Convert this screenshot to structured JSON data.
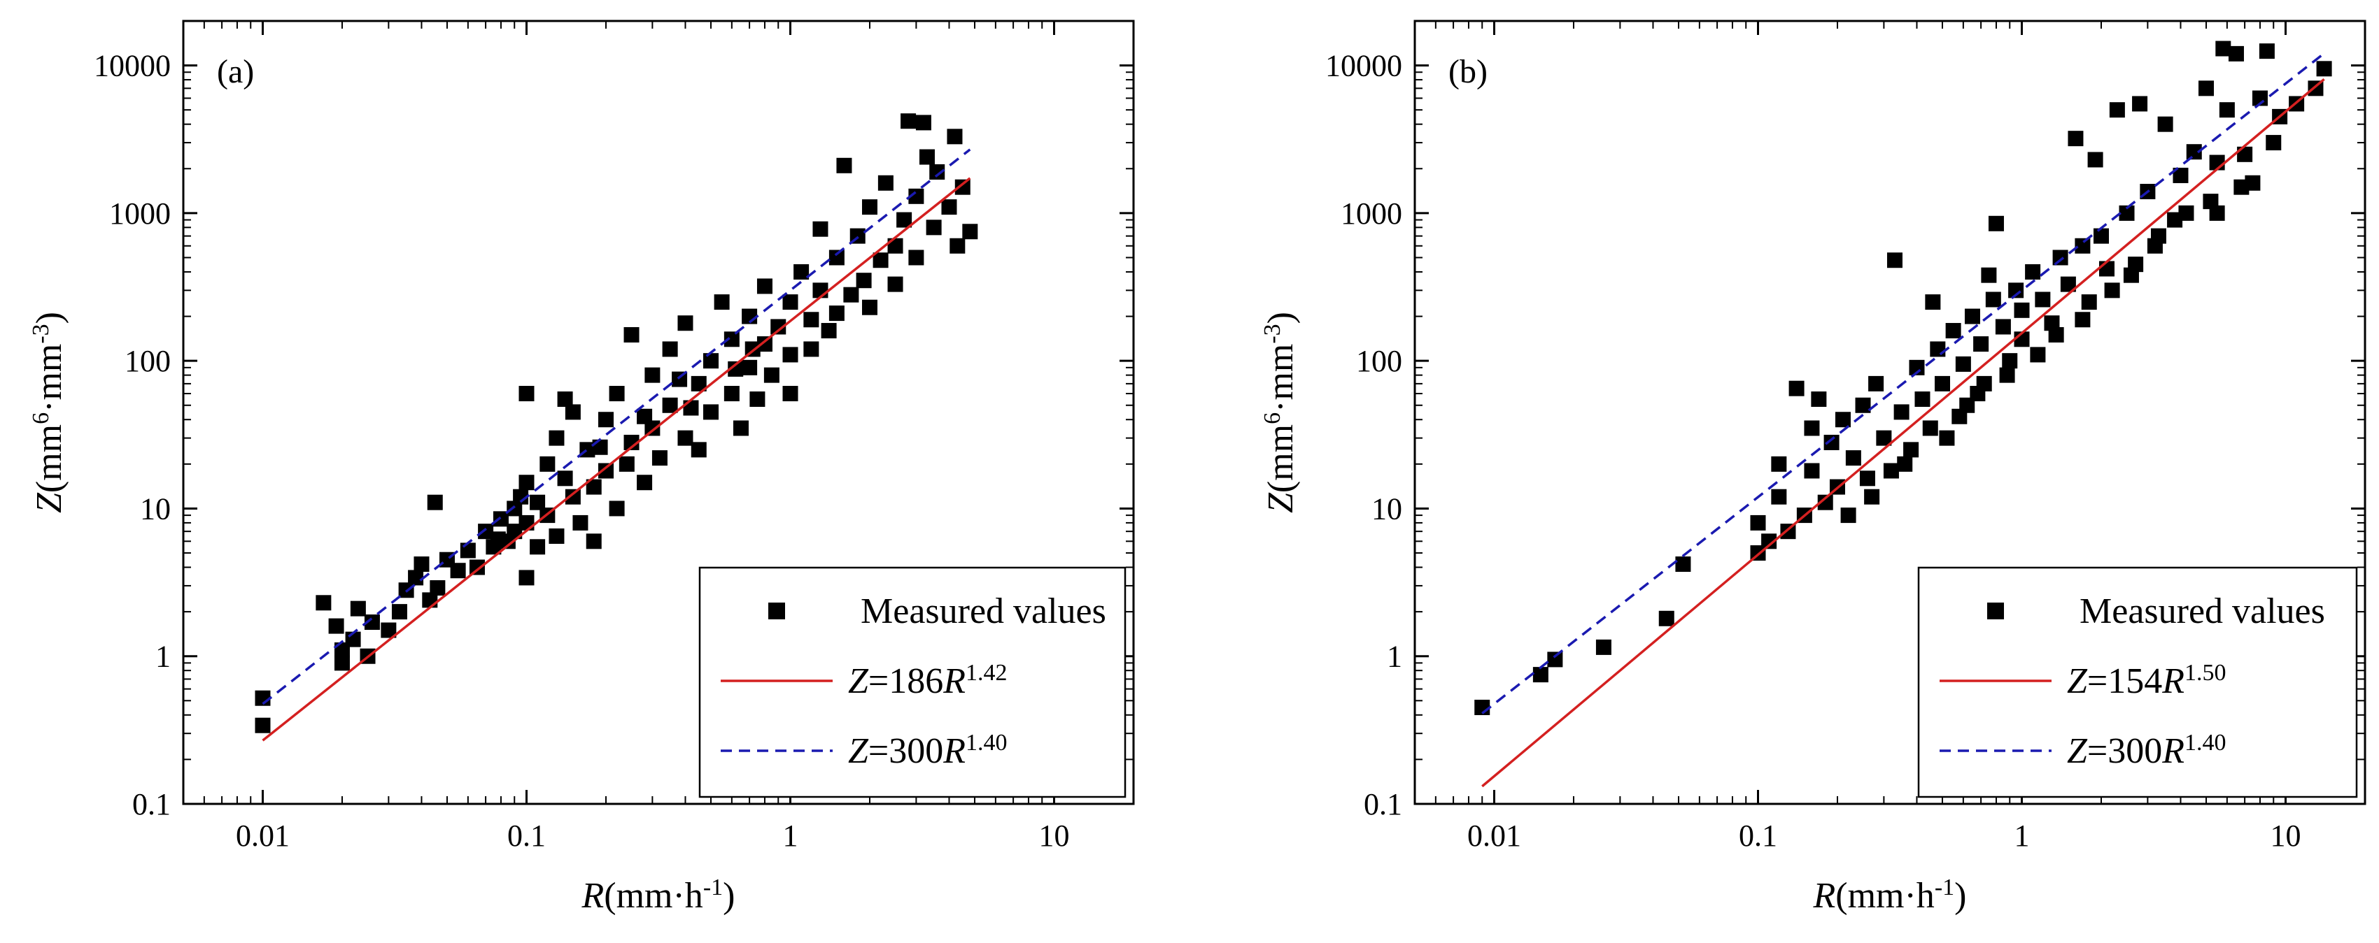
{
  "chart_data": [
    {
      "type": "scatter",
      "panel_label": "(a)",
      "xscale": "log",
      "yscale": "log",
      "xlim": [
        0.005,
        20
      ],
      "ylim": [
        0.1,
        20000
      ],
      "xticks": [
        0.01,
        0.1,
        1,
        10
      ],
      "xtick_labels": [
        "0.01",
        "0.1",
        "1",
        "10"
      ],
      "yticks": [
        0.1,
        1,
        10,
        100,
        1000,
        10000
      ],
      "ytick_labels": [
        "0.1",
        "1",
        "10",
        "100",
        "1000",
        "10000"
      ],
      "xlabel": {
        "var": "R",
        "rest": "(mm·h",
        "sup": "-1",
        "close": ")"
      },
      "ylabel": {
        "var": "Z",
        "rest": "(mm",
        "sup": "6",
        "mid": "·mm",
        "sup2": "-3",
        "close": ")"
      },
      "legend_position": "bottom-right",
      "series": [
        {
          "name": "Measured values",
          "kind": "scatter",
          "marker": "square",
          "color": "#000000",
          "points": [
            [
              0.01,
              0.34
            ],
            [
              0.01,
              0.52
            ],
            [
              0.017,
              2.3
            ],
            [
              0.019,
              1.6
            ],
            [
              0.02,
              1.1
            ],
            [
              0.02,
              0.9
            ],
            [
              0.022,
              1.3
            ],
            [
              0.023,
              2.1
            ],
            [
              0.025,
              1.0
            ],
            [
              0.026,
              1.7
            ],
            [
              0.03,
              1.5
            ],
            [
              0.033,
              2.0
            ],
            [
              0.035,
              2.8
            ],
            [
              0.038,
              3.4
            ],
            [
              0.04,
              4.2
            ],
            [
              0.043,
              2.4
            ],
            [
              0.045,
              11
            ],
            [
              0.046,
              2.9
            ],
            [
              0.05,
              4.5
            ],
            [
              0.055,
              3.8
            ],
            [
              0.06,
              5.2
            ],
            [
              0.065,
              4.0
            ],
            [
              0.07,
              7.0
            ],
            [
              0.075,
              5.5
            ],
            [
              0.08,
              8.5
            ],
            [
              0.085,
              6.0
            ],
            [
              0.09,
              10
            ],
            [
              0.095,
              12
            ],
            [
              0.1,
              3.4
            ],
            [
              0.1,
              8.0
            ],
            [
              0.1,
              15
            ],
            [
              0.1,
              60
            ],
            [
              0.11,
              5.5
            ],
            [
              0.12,
              20
            ],
            [
              0.12,
              9.0
            ],
            [
              0.13,
              6.5
            ],
            [
              0.13,
              30
            ],
            [
              0.14,
              55
            ],
            [
              0.15,
              12
            ],
            [
              0.15,
              45
            ],
            [
              0.16,
              8.0
            ],
            [
              0.17,
              25
            ],
            [
              0.18,
              14
            ],
            [
              0.18,
              6.0
            ],
            [
              0.2,
              40
            ],
            [
              0.2,
              18
            ],
            [
              0.22,
              10
            ],
            [
              0.22,
              60
            ],
            [
              0.25,
              28
            ],
            [
              0.25,
              150
            ],
            [
              0.28,
              15
            ],
            [
              0.3,
              80
            ],
            [
              0.3,
              35
            ],
            [
              0.32,
              22
            ],
            [
              0.35,
              120
            ],
            [
              0.35,
              50
            ],
            [
              0.4,
              30
            ],
            [
              0.4,
              180
            ],
            [
              0.45,
              70
            ],
            [
              0.45,
              25
            ],
            [
              0.5,
              100
            ],
            [
              0.5,
              45
            ],
            [
              0.55,
              250
            ],
            [
              0.6,
              60
            ],
            [
              0.6,
              140
            ],
            [
              0.65,
              35
            ],
            [
              0.7,
              200
            ],
            [
              0.7,
              90
            ],
            [
              0.75,
              55
            ],
            [
              0.8,
              320
            ],
            [
              0.8,
              130
            ],
            [
              0.85,
              80
            ],
            [
              0.9,
              170
            ],
            [
              1.0,
              250
            ],
            [
              1.0,
              110
            ],
            [
              1.0,
              60
            ],
            [
              1.1,
              400
            ],
            [
              1.2,
              190
            ],
            [
              1.2,
              120
            ],
            [
              1.3,
              300
            ],
            [
              1.4,
              160
            ],
            [
              1.5,
              500
            ],
            [
              1.5,
              210
            ],
            [
              1.6,
              2100
            ],
            [
              1.7,
              280
            ],
            [
              1.8,
              700
            ],
            [
              1.9,
              350
            ],
            [
              2.0,
              1100
            ],
            [
              2.0,
              230
            ],
            [
              2.2,
              480
            ],
            [
              2.3,
              1600
            ],
            [
              2.5,
              600
            ],
            [
              2.5,
              330
            ],
            [
              2.7,
              900
            ],
            [
              2.8,
              4200
            ],
            [
              3.0,
              1300
            ],
            [
              3.0,
              500
            ],
            [
              3.2,
              4100
            ],
            [
              3.3,
              2400
            ],
            [
              3.5,
              800
            ],
            [
              3.6,
              1900
            ],
            [
              4.0,
              1100
            ],
            [
              4.2,
              3300
            ],
            [
              4.3,
              600
            ],
            [
              4.5,
              1500
            ],
            [
              4.8,
              750
            ],
            [
              1.3,
              780
            ],
            [
              0.38,
              75
            ],
            [
              0.42,
              48
            ],
            [
              0.62,
              88
            ],
            [
              0.72,
              120
            ],
            [
              0.28,
              42
            ],
            [
              0.24,
              20
            ],
            [
              0.19,
              26
            ],
            [
              0.14,
              16
            ],
            [
              0.11,
              11
            ],
            [
              0.09,
              7.0
            ],
            [
              0.078,
              6.2
            ]
          ]
        },
        {
          "name": "Z=186R^1.42",
          "kind": "power-line",
          "a": 186,
          "b": 1.42,
          "x_range": [
            0.01,
            4.8
          ],
          "color": "#d42020",
          "style": "solid",
          "label": {
            "var": "Z",
            "eq": "=186",
            "var2": "R",
            "exp": "1.42"
          }
        },
        {
          "name": "Z=300R^1.40",
          "kind": "power-line",
          "a": 300,
          "b": 1.4,
          "x_range": [
            0.01,
            4.8
          ],
          "color": "#1a1ab0",
          "style": "dashed",
          "label": {
            "var": "Z",
            "eq": "=300",
            "var2": "R",
            "exp": "1.40"
          }
        }
      ]
    },
    {
      "type": "scatter",
      "panel_label": "(b)",
      "xscale": "log",
      "yscale": "log",
      "xlim": [
        0.005,
        20
      ],
      "ylim": [
        0.1,
        20000
      ],
      "xticks": [
        0.01,
        0.1,
        1,
        10
      ],
      "xtick_labels": [
        "0.01",
        "0.1",
        "1",
        "10"
      ],
      "yticks": [
        0.1,
        1,
        10,
        100,
        1000,
        10000
      ],
      "ytick_labels": [
        "0.1",
        "1",
        "10",
        "100",
        "1000",
        "10000"
      ],
      "xlabel": {
        "var": "R",
        "rest": "(mm·h",
        "sup": "-1",
        "close": ")"
      },
      "ylabel": {
        "var": "Z",
        "rest": "(mm",
        "sup": "6",
        "mid": "·mm",
        "sup2": "-3",
        "close": ")"
      },
      "legend_position": "bottom-right",
      "series": [
        {
          "name": "Measured values",
          "kind": "scatter",
          "marker": "square",
          "color": "#000000",
          "points": [
            [
              0.009,
              0.45
            ],
            [
              0.015,
              0.75
            ],
            [
              0.017,
              0.95
            ],
            [
              0.026,
              1.15
            ],
            [
              0.045,
              1.8
            ],
            [
              0.052,
              4.2
            ],
            [
              0.1,
              5.0
            ],
            [
              0.1,
              8.0
            ],
            [
              0.11,
              6.0
            ],
            [
              0.12,
              12
            ],
            [
              0.13,
              7.0
            ],
            [
              0.14,
              65
            ],
            [
              0.15,
              9.0
            ],
            [
              0.16,
              18
            ],
            [
              0.17,
              55
            ],
            [
              0.18,
              11
            ],
            [
              0.19,
              28
            ],
            [
              0.2,
              14
            ],
            [
              0.21,
              40
            ],
            [
              0.22,
              9.0
            ],
            [
              0.23,
              22
            ],
            [
              0.25,
              50
            ],
            [
              0.26,
              16
            ],
            [
              0.28,
              70
            ],
            [
              0.3,
              30
            ],
            [
              0.32,
              18
            ],
            [
              0.33,
              480
            ],
            [
              0.35,
              45
            ],
            [
              0.38,
              25
            ],
            [
              0.4,
              90
            ],
            [
              0.42,
              55
            ],
            [
              0.45,
              35
            ],
            [
              0.48,
              120
            ],
            [
              0.5,
              70
            ],
            [
              0.52,
              30
            ],
            [
              0.55,
              160
            ],
            [
              0.6,
              95
            ],
            [
              0.62,
              50
            ],
            [
              0.65,
              200
            ],
            [
              0.7,
              130
            ],
            [
              0.72,
              70
            ],
            [
              0.78,
              260
            ],
            [
              0.8,
              850
            ],
            [
              0.85,
              170
            ],
            [
              0.9,
              100
            ],
            [
              0.95,
              300
            ],
            [
              1.0,
              220
            ],
            [
              1.0,
              140
            ],
            [
              1.1,
              400
            ],
            [
              1.2,
              260
            ],
            [
              1.3,
              180
            ],
            [
              1.4,
              500
            ],
            [
              1.5,
              330
            ],
            [
              1.6,
              3200
            ],
            [
              1.7,
              600
            ],
            [
              1.8,
              250
            ],
            [
              1.9,
              2300
            ],
            [
              2.0,
              700
            ],
            [
              2.1,
              420
            ],
            [
              2.3,
              5000
            ],
            [
              2.5,
              1000
            ],
            [
              2.6,
              380
            ],
            [
              2.8,
              5500
            ],
            [
              3.0,
              1400
            ],
            [
              3.2,
              600
            ],
            [
              3.5,
              4000
            ],
            [
              3.8,
              900
            ],
            [
              4.0,
              1800
            ],
            [
              4.5,
              2600
            ],
            [
              5.0,
              7000
            ],
            [
              5.2,
              1200
            ],
            [
              5.5,
              2200
            ],
            [
              5.8,
              13000
            ],
            [
              6.0,
              5000
            ],
            [
              6.5,
              12000
            ],
            [
              7.0,
              2500
            ],
            [
              7.5,
              1600
            ],
            [
              8.0,
              6000
            ],
            [
              8.5,
              12500
            ],
            [
              9.0,
              3000
            ],
            [
              9.5,
              4500
            ],
            [
              11,
              5500
            ],
            [
              13,
              7000
            ],
            [
              14,
              9500
            ],
            [
              0.27,
              12
            ],
            [
              0.36,
              20
            ],
            [
              0.58,
              42
            ],
            [
              0.68,
              60
            ],
            [
              0.88,
              80
            ],
            [
              1.15,
              110
            ],
            [
              1.35,
              150
            ],
            [
              1.7,
              190
            ],
            [
              2.2,
              300
            ],
            [
              2.7,
              450
            ],
            [
              3.3,
              700
            ],
            [
              4.2,
              1000
            ],
            [
              5.5,
              1000
            ],
            [
              6.8,
              1500
            ],
            [
              0.12,
              20
            ],
            [
              0.16,
              35
            ],
            [
              0.46,
              250
            ],
            [
              0.75,
              380
            ]
          ]
        },
        {
          "name": "Z=154R^1.50",
          "kind": "power-line",
          "a": 154,
          "b": 1.5,
          "x_range": [
            0.009,
            14
          ],
          "color": "#d42020",
          "style": "solid",
          "label": {
            "var": "Z",
            "eq": "=154",
            "var2": "R",
            "exp": "1.50"
          }
        },
        {
          "name": "Z=300R^1.40",
          "kind": "power-line",
          "a": 300,
          "b": 1.4,
          "x_range": [
            0.009,
            14
          ],
          "color": "#1a1ab0",
          "style": "dashed",
          "label": {
            "var": "Z",
            "eq": "=300",
            "var2": "R",
            "exp": "1.40"
          }
        }
      ]
    }
  ]
}
